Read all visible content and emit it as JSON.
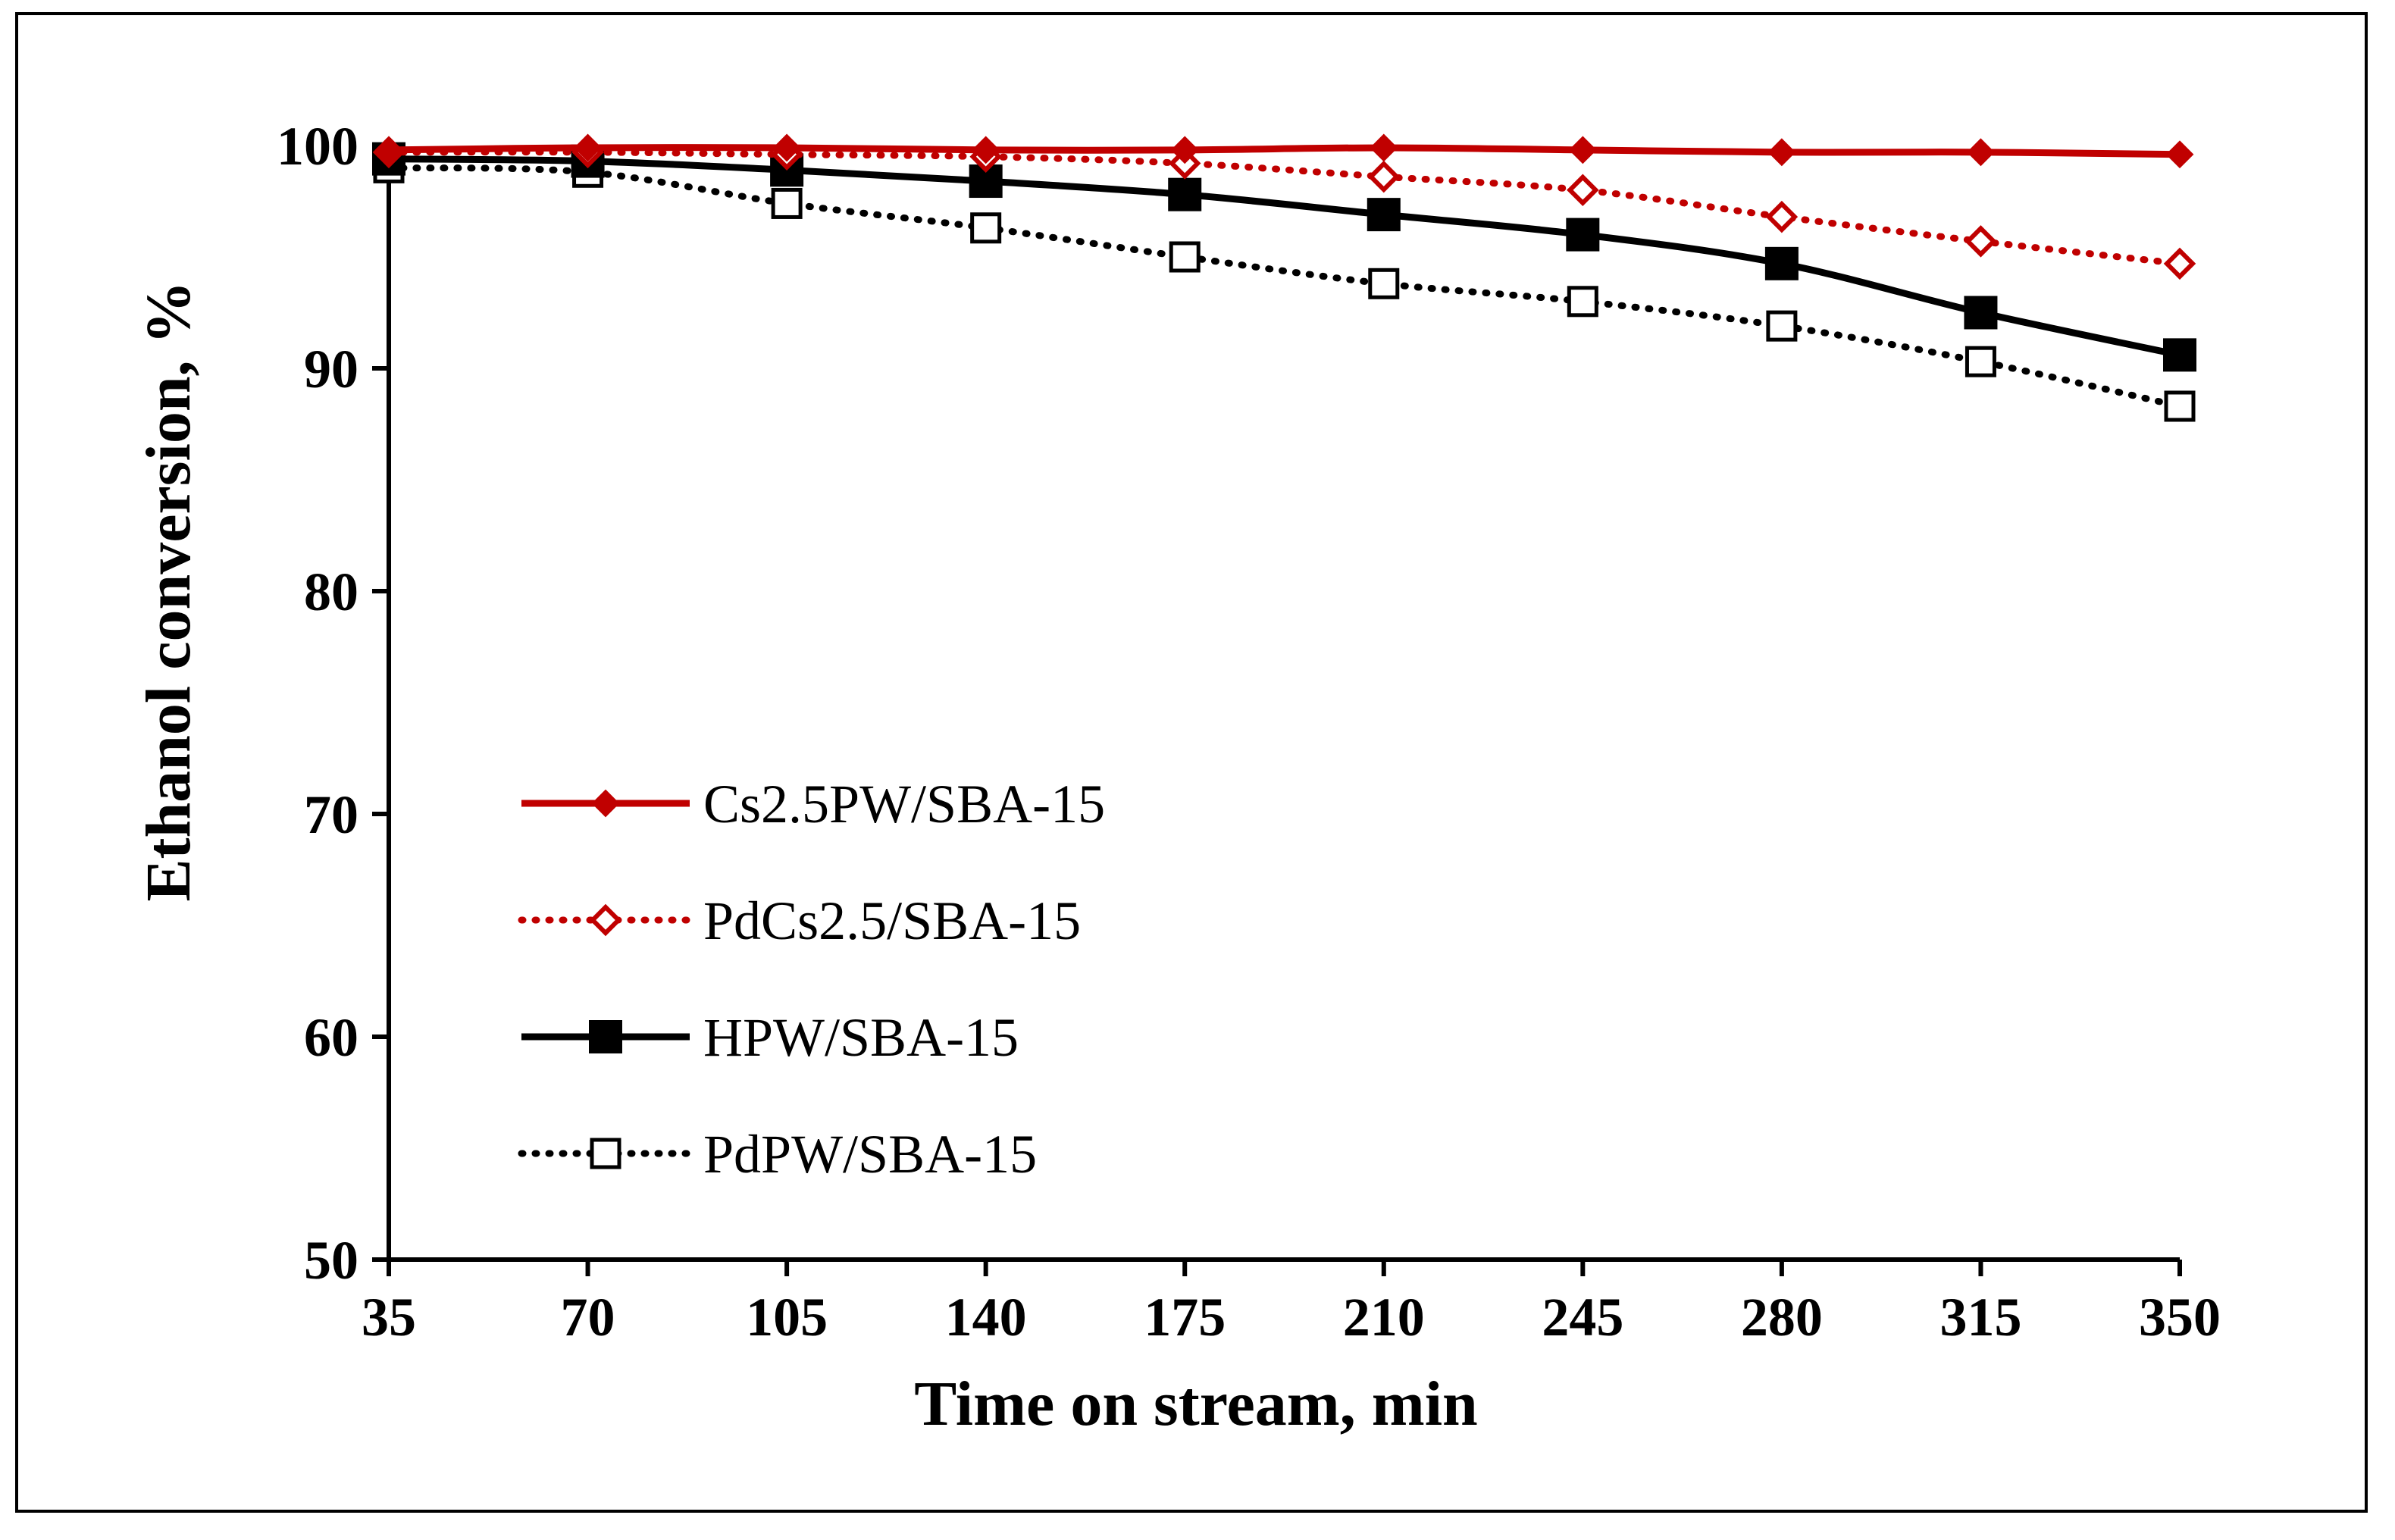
{
  "chart_data": {
    "type": "line",
    "title": "",
    "xlabel": "Time on stream, min",
    "ylabel": "Ethanol conversion, %",
    "x": [
      35,
      70,
      105,
      140,
      175,
      210,
      245,
      280,
      315,
      350
    ],
    "x_tick_labels": [
      "35",
      "70",
      "105",
      "140",
      "175",
      "210",
      "245",
      "280",
      "315",
      "350"
    ],
    "y_tick_labels": [
      "50",
      "60",
      "70",
      "80",
      "90",
      "100"
    ],
    "ylim": [
      50,
      100
    ],
    "grid": false,
    "legend_position": "center-left",
    "series": [
      {
        "name": "Cs2.5PW/SBA-15",
        "color": "#c00000",
        "line": "solid",
        "marker": "diamond-filled",
        "values": [
          99.8,
          99.9,
          99.9,
          99.8,
          99.8,
          99.9,
          99.8,
          99.7,
          99.7,
          99.6
        ]
      },
      {
        "name": "PdCs2.5/SBA-15",
        "color": "#c00000",
        "line": "dotted",
        "marker": "diamond-open",
        "values": [
          99.7,
          99.7,
          99.6,
          99.5,
          99.2,
          98.6,
          98.0,
          96.8,
          95.7,
          94.7
        ]
      },
      {
        "name": "HPW/SBA-15",
        "color": "#000000",
        "line": "solid",
        "marker": "square-filled",
        "values": [
          99.4,
          99.3,
          98.9,
          98.4,
          97.8,
          96.9,
          96.0,
          94.7,
          92.5,
          90.6
        ]
      },
      {
        "name": "PdPW/SBA-15",
        "color": "#000000",
        "line": "dotted",
        "marker": "square-open",
        "values": [
          99.0,
          98.8,
          97.4,
          96.3,
          95.0,
          93.8,
          93.0,
          91.9,
          90.3,
          88.3
        ]
      }
    ]
  }
}
